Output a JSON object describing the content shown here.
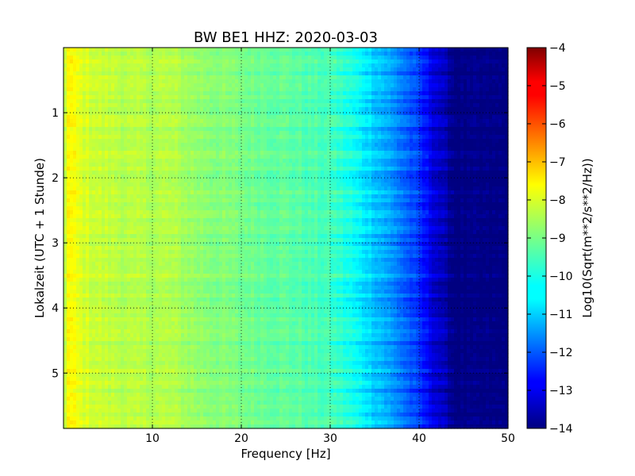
{
  "chart_data": {
    "type": "heatmap",
    "title": "BW BE1 HHZ: 2020-03-03",
    "xlabel": "Frequency [Hz]",
    "ylabel": "Lokalzeit (UTC + 1 Stunde)",
    "colorbar_label": "Log10(Sqrt(m**2/s**2/Hz))",
    "colormap": "jet",
    "grid": true,
    "xlim": [
      0,
      50
    ],
    "ylim": [
      5.85,
      0
    ],
    "x_ticks": [
      {
        "value": 10,
        "label": "10"
      },
      {
        "value": 20,
        "label": "20"
      },
      {
        "value": 30,
        "label": "30"
      },
      {
        "value": 40,
        "label": "40"
      },
      {
        "value": 50,
        "label": "50"
      }
    ],
    "y_ticks": [
      {
        "value": 1,
        "label": "1"
      },
      {
        "value": 2,
        "label": "2"
      },
      {
        "value": 3,
        "label": "3"
      },
      {
        "value": 4,
        "label": "4"
      },
      {
        "value": 5,
        "label": "5"
      }
    ],
    "color_range": [
      -14,
      -4
    ],
    "colorbar_ticks": [
      {
        "value": -4,
        "label": "−4"
      },
      {
        "value": -5,
        "label": "−5"
      },
      {
        "value": -6,
        "label": "−6"
      },
      {
        "value": -7,
        "label": "−7"
      },
      {
        "value": -8,
        "label": "−8"
      },
      {
        "value": -9,
        "label": "−9"
      },
      {
        "value": -10,
        "label": "−10"
      },
      {
        "value": -11,
        "label": "−11"
      },
      {
        "value": -12,
        "label": "−12"
      },
      {
        "value": -13,
        "label": "−13"
      },
      {
        "value": -14,
        "label": "−14"
      }
    ],
    "spectrum_profile": {
      "frequency_hz": [
        0,
        0.5,
        1,
        2,
        4,
        6,
        8,
        10,
        12,
        15,
        20,
        25,
        28,
        30,
        32,
        34,
        36,
        38,
        40,
        41,
        42,
        43,
        44,
        45,
        50
      ],
      "log_amplitude": [
        -8.6,
        -7.7,
        -7.8,
        -8.1,
        -8.3,
        -8.4,
        -8.5,
        -8.5,
        -8.5,
        -8.8,
        -9.1,
        -9.3,
        -9.5,
        -9.6,
        -10.0,
        -10.5,
        -11.0,
        -11.6,
        -12.3,
        -12.8,
        -13.2,
        -13.6,
        -14.0,
        -14.0,
        -14.0
      ]
    }
  }
}
